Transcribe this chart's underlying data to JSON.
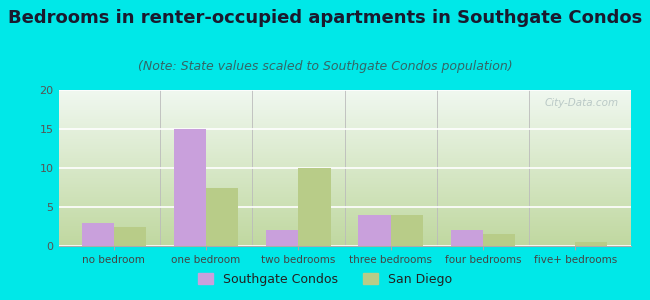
{
  "title": "Bedrooms in renter-occupied apartments in Southgate Condos",
  "subtitle": "(Note: State values scaled to Southgate Condos population)",
  "categories": [
    "no bedroom",
    "one bedroom",
    "two bedrooms",
    "three bedrooms",
    "four bedrooms",
    "five+ bedrooms"
  ],
  "southgate_values": [
    3,
    15,
    2,
    4,
    2,
    0
  ],
  "sandiego_values": [
    2.5,
    7.5,
    10,
    4,
    1.5,
    0.5
  ],
  "southgate_color": "#c9a0dc",
  "sandiego_color": "#b8cc88",
  "background_color": "#00e8e8",
  "plot_bg_top_left": "#f0f8f0",
  "plot_bg_bottom_right": "#c8ddb0",
  "ylim": [
    0,
    20
  ],
  "yticks": [
    0,
    5,
    10,
    15,
    20
  ],
  "legend_southgate": "Southgate Condos",
  "legend_sandiego": "San Diego",
  "bar_width": 0.35,
  "title_fontsize": 13,
  "subtitle_fontsize": 9,
  "watermark": "City-Data.com"
}
